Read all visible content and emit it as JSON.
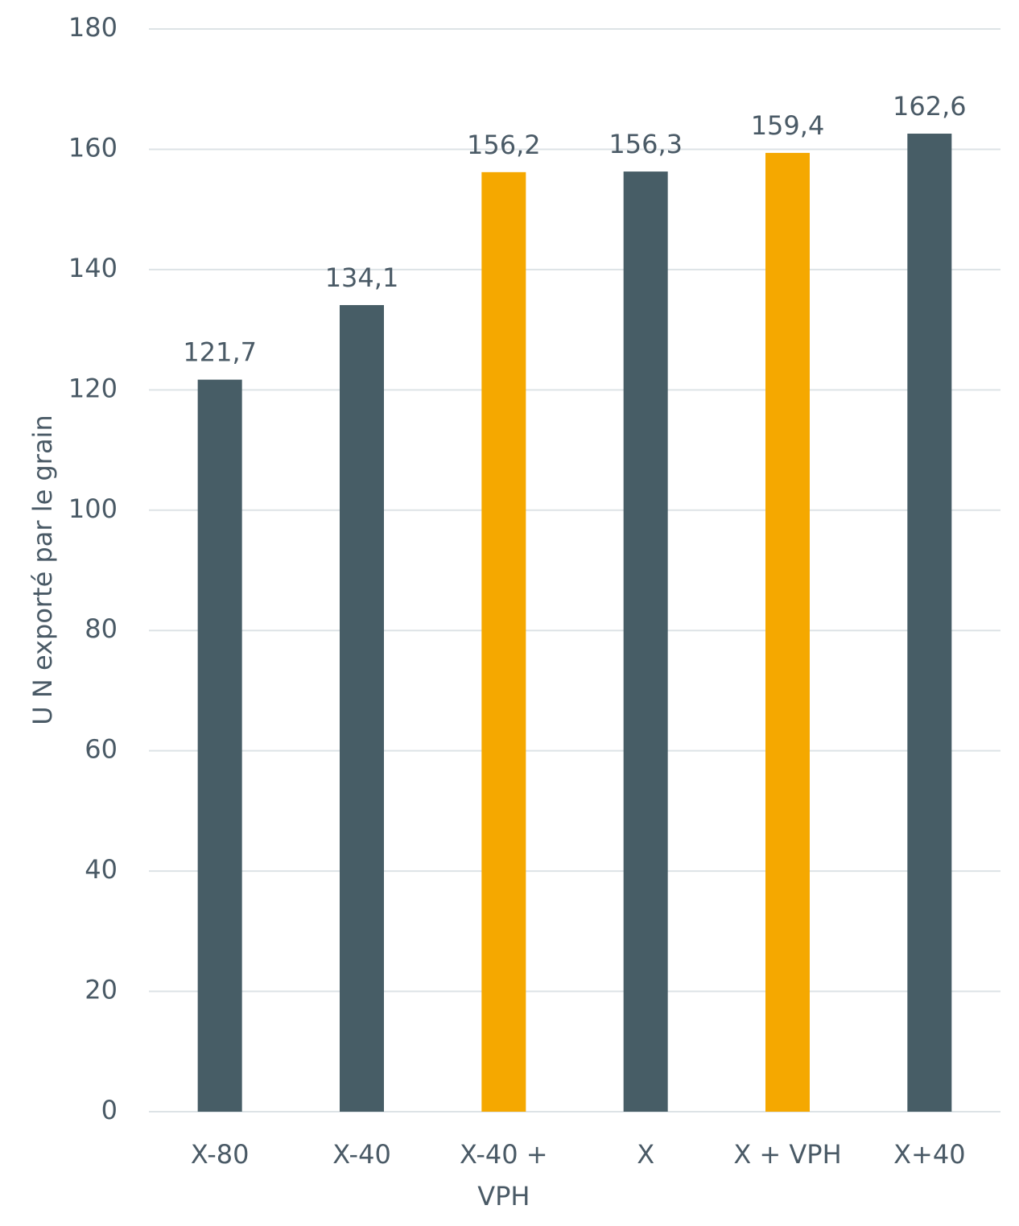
{
  "chart_data": {
    "type": "bar",
    "y_label": "U N exporté par le grain",
    "categories": [
      "X-80",
      "X-40",
      "X-40 + VPH",
      "X",
      "X + VPH",
      "X+40"
    ],
    "values": [
      121.7,
      134.1,
      156.2,
      156.3,
      159.4,
      162.6
    ],
    "value_labels": [
      "121,7",
      "134,1",
      "156,2",
      "156,3",
      "159,4",
      "162,6"
    ],
    "colors": [
      "#475d66",
      "#475d66",
      "#f5a800",
      "#475d66",
      "#f5a800",
      "#475d66"
    ],
    "ylim": [
      0,
      180
    ],
    "yticks": [
      0,
      20,
      40,
      60,
      80,
      100,
      120,
      140,
      160,
      180
    ],
    "grid": true
  }
}
